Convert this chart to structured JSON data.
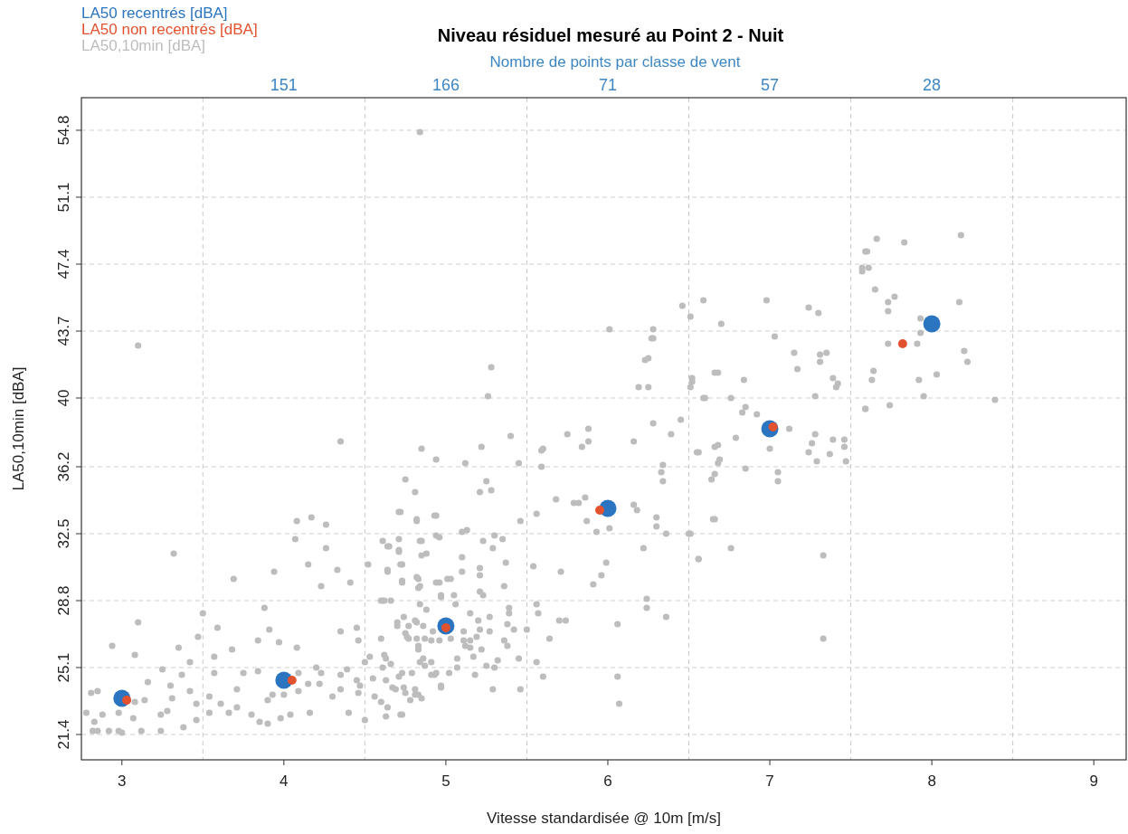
{
  "chart_data": {
    "type": "scatter",
    "title": "Niveau résiduel mesuré au  Point  2  -  Nuit",
    "xlabel": "Vitesse standardisée @ 10m [m/s]",
    "ylabel": "LA50,10min [dBA]",
    "x2label": "Nombre de points par classe de vent",
    "xlim": [
      2.75,
      9.2
    ],
    "xticks": [
      3,
      4,
      5,
      6,
      7,
      8,
      9
    ],
    "annotations": [
      "151",
      "166",
      "71",
      "57",
      "28"
    ],
    "ylim": [
      20.0,
      56.6
    ],
    "yticks": [
      21.4,
      25.1,
      28.8,
      32.5,
      36.2,
      40.0,
      43.7,
      47.4,
      51.1,
      54.8
    ],
    "grid": "y",
    "legend": "top left",
    "marker": "circle",
    "ref_lines": [
      {
        "axis": "x",
        "value": 3.5,
        "color": "#c8c8c8",
        "line_style": "dashed"
      },
      {
        "axis": "x",
        "value": 4.5,
        "color": "#c8c8c8",
        "line_style": "dashed"
      },
      {
        "axis": "x",
        "value": 5.5,
        "color": "#c8c8c8",
        "line_style": "dashed"
      },
      {
        "axis": "x",
        "value": 6.5,
        "color": "#c8c8c8",
        "line_style": "dashed"
      },
      {
        "axis": "x",
        "value": 7.5,
        "color": "#c8c8c8",
        "line_style": "dashed"
      },
      {
        "axis": "x",
        "value": 8.5,
        "color": "#c8c8c8",
        "line_style": "dashed"
      }
    ],
    "series": [
      {
        "name": "LA50,10min [dBA]",
        "color": "#bdbdbd",
        "x": [
          3.32,
          3.1,
          2.94,
          3.08,
          2.81,
          2.85,
          2.78,
          2.83,
          2.88,
          2.82,
          2.85,
          2.92,
          2.98,
          3.0,
          3.12,
          3.07,
          2.98,
          3.08,
          3.14,
          3.16,
          3.24,
          3.24,
          3.25,
          3.3,
          3.31,
          3.28,
          3.38,
          3.37,
          3.35,
          3.42,
          3.42,
          3.46,
          3.47,
          3.46,
          3.5,
          3.1,
          3.59,
          3.57,
          3.57,
          3.54,
          3.54,
          3.61,
          3.66,
          3.68,
          3.69,
          3.71,
          3.71,
          3.75,
          3.8,
          3.85,
          3.84,
          3.84,
          3.88,
          3.9,
          3.91,
          3.9,
          3.93,
          3.94,
          3.97,
          3.98,
          4.0,
          4.04,
          4.07,
          4.08,
          4.08,
          4.09,
          4.09,
          4.15,
          4.17,
          4.15,
          4.16,
          4.2,
          4.22,
          4.23,
          4.23,
          4.26,
          4.26,
          4.3,
          4.33,
          4.35,
          4.35,
          4.35,
          4.39,
          4.4,
          4.41,
          4.45,
          4.46,
          4.45,
          4.46,
          4.47,
          4.5,
          4.5,
          4.35,
          4.52,
          4.53,
          4.55,
          4.56,
          4.6,
          4.61,
          4.64,
          4.64,
          4.6,
          4.62,
          4.62,
          4.64,
          4.63,
          4.7,
          4.71,
          4.71,
          4.71,
          4.72,
          4.73,
          4.72,
          4.73,
          4.73,
          4.74,
          4.75,
          4.76,
          4.82,
          4.82,
          4.83,
          4.84,
          4.85,
          4.83,
          4.82,
          4.81,
          4.83,
          4.84,
          4.86,
          4.93,
          4.94,
          4.94,
          4.97,
          4.93,
          4.97,
          5.03,
          4.84,
          5.28,
          5.26,
          4.85,
          4.94,
          5.12,
          5.22,
          5.4,
          5.45,
          4.75,
          4.81,
          5.25,
          5.21,
          5.28,
          4.72,
          4.82,
          4.94,
          5.46,
          5.1,
          5.13,
          5.3,
          5.35,
          4.96,
          4.85,
          4.71,
          4.65,
          5.23,
          4.88,
          5.29,
          5.1,
          4.64,
          4.73,
          5.21,
          5.37,
          5.1,
          4.83,
          5.01,
          4.73,
          5.21,
          4.84,
          4.96,
          5.36,
          5.21,
          5.23,
          4.97,
          5.05,
          4.61,
          4.66,
          4.84,
          5.06,
          4.88,
          5.39,
          5.39,
          5.15,
          5.56,
          5.57,
          4.74,
          4.81,
          4.7,
          4.77,
          4.86,
          5.2,
          5.27,
          5.38,
          5.42,
          4.92,
          5.11,
          5.21,
          5.27,
          5.5,
          5.7,
          5.74,
          4.77,
          4.82,
          4.87,
          4.91,
          4.96,
          5.03,
          5.11,
          5.15,
          5.19,
          5.64,
          4.83,
          5.12,
          5.15,
          5.22,
          5.36,
          5.38,
          4.63,
          4.66,
          4.61,
          4.87,
          4.91,
          5.07,
          5.17,
          5.32,
          5.07,
          5.25,
          5.3,
          5.45,
          5.56,
          4.71,
          4.79,
          4.91,
          4.94,
          5.02,
          5.18,
          4.63,
          5.6,
          6.06,
          4.67,
          4.69,
          4.75,
          4.81,
          4.78,
          4.85,
          4.97,
          5.29,
          5.46,
          4.6,
          6.07,
          6.06,
          5.59,
          5.6,
          5.59,
          5.75,
          5.88,
          5.84,
          5.88,
          6.19,
          6.25,
          6.25,
          6.28,
          6.28,
          6.16,
          6.39,
          6.45,
          6.34,
          6.33,
          6.34,
          5.56,
          5.68,
          5.79,
          5.82,
          5.86,
          6.16,
          6.18,
          5.87,
          6.01,
          5.93,
          6.3,
          6.3,
          6.36,
          6.22,
          5.99,
          5.96,
          5.91,
          5.71,
          5.54,
          6.24,
          6.24,
          6.36,
          6.5,
          6.56,
          6.55,
          6.52,
          6.59,
          6.66,
          6.66,
          6.64,
          6.68,
          6.65,
          6.59,
          6.46,
          6.51,
          6.7,
          6.98,
          7.24,
          7.3,
          7.03,
          7.15,
          7.31,
          7.35,
          7.17,
          7.31,
          7.39,
          7.42,
          7.41,
          7.28,
          7.59,
          7.57,
          7.59,
          6.68,
          6.84,
          6.6,
          6.76,
          6.85,
          6.83,
          6.92,
          7.12,
          7.28,
          7.26,
          7.39,
          7.46,
          7.46,
          7.24,
          7.37,
          7.47,
          7.29,
          6.79,
          6.68,
          6.56,
          6.69,
          6.85,
          6.66,
          7.0,
          7.05,
          7.05,
          6.66,
          6.76,
          7.33,
          6.56,
          6.51,
          6.51,
          6.52,
          6.01,
          6.28,
          6.27,
          6.23,
          7.33,
          7.66,
          7.83,
          8.18,
          7.6,
          7.61,
          7.57,
          7.65,
          7.77,
          7.73,
          7.73,
          8.17,
          7.93,
          7.93,
          7.91,
          7.73,
          8.2,
          8.22,
          8.03,
          7.92,
          7.64,
          7.63,
          7.95,
          7.74,
          7.59,
          8.39
        ],
        "values": [
          31.4,
          27.6,
          26.3,
          25.8,
          23.7,
          23.8,
          22.6,
          22.1,
          22.5,
          21.6,
          21.6,
          21.6,
          21.6,
          21.5,
          21.6,
          22.3,
          22.6,
          23.2,
          23.3,
          24.3,
          22.5,
          21.6,
          25.0,
          24.1,
          23.4,
          22.7,
          21.8,
          24.7,
          26.2,
          25.4,
          23.8,
          23.1,
          26.8,
          22.2,
          28.1,
          42.9,
          27.3,
          25.7,
          24.8,
          23.5,
          22.6,
          23.1,
          22.6,
          26.1,
          30.0,
          23.9,
          22.9,
          24.8,
          22.5,
          22.1,
          24.9,
          26.6,
          28.4,
          22.0,
          27.2,
          23.3,
          23.6,
          30.4,
          26.5,
          22.3,
          23.6,
          22.5,
          32.2,
          33.2,
          26.2,
          23.8,
          24.8,
          24.2,
          33.4,
          30.8,
          22.6,
          25.1,
          24.2,
          29.6,
          24.8,
          31.7,
          33.0,
          23.5,
          30.5,
          27.1,
          24.7,
          23.9,
          25.0,
          22.6,
          29.8,
          27.3,
          26.6,
          24.4,
          23.7,
          24.1,
          25.4,
          22.2,
          37.6,
          30.8,
          25.7,
          24.5,
          23.5,
          26.7,
          32.1,
          31.8,
          30.4,
          28.8,
          28.8,
          25.8,
          22.9,
          22.4,
          27.6,
          33.7,
          32.2,
          31.5,
          30.8,
          29.8,
          22.5,
          22.5,
          24.8,
          24.0,
          27.0,
          26.8,
          33.3,
          30.1,
          29.5,
          32.1,
          31.3,
          26.3,
          27.6,
          23.6,
          23.6,
          25.4,
          25.6,
          33.5,
          32.4,
          29.8,
          29.0,
          24.7,
          24.1,
          30.0,
          54.7,
          41.7,
          40.1,
          37.2,
          36.6,
          36.4,
          37.3,
          37.9,
          36.4,
          35.5,
          34.8,
          35.4,
          34.8,
          34.9,
          33.7,
          33.2,
          33.5,
          33.2,
          32.6,
          32.7,
          32.4,
          32.2,
          32.3,
          32.1,
          31.6,
          31.8,
          32.1,
          31.4,
          31.7,
          31.2,
          30.5,
          30.8,
          30.6,
          30.9,
          30.4,
          30.0,
          30.0,
          29.9,
          30.2,
          29.6,
          29.8,
          29.6,
          29.3,
          29.1,
          29.1,
          29.1,
          28.8,
          28.8,
          28.6,
          28.6,
          28.3,
          28.4,
          28.1,
          28.1,
          28.6,
          28.1,
          27.9,
          27.7,
          27.4,
          27.4,
          27.4,
          27.7,
          27.9,
          27.5,
          27.2,
          27.1,
          27.1,
          27.2,
          27.1,
          27.2,
          27.7,
          27.7,
          26.7,
          26.7,
          26.7,
          26.6,
          26.6,
          26.7,
          26.6,
          26.6,
          26.8,
          26.7,
          26.1,
          26.3,
          26.2,
          26.1,
          26.6,
          26.3,
          25.6,
          25.3,
          25.1,
          25.2,
          25.4,
          25.6,
          25.7,
          25.5,
          25.1,
          25.2,
          25.1,
          25.6,
          25.4,
          24.6,
          24.8,
          24.7,
          24.8,
          24.8,
          24.7,
          24.4,
          24.6,
          24.6,
          24.0,
          23.9,
          23.7,
          23.9,
          23.3,
          23.4,
          24.0,
          23.9,
          23.9,
          23.2,
          23.1,
          27.5,
          37.1,
          37.2,
          36.2,
          38.0,
          38.3,
          37.3,
          37.6,
          40.6,
          40.6,
          42.2,
          43.3,
          38.6,
          37.6,
          38.0,
          38.8,
          36.3,
          35.9,
          35.4,
          33.6,
          34.4,
          34.2,
          34.2,
          34.5,
          34.1,
          33.8,
          33.2,
          32.8,
          32.6,
          33.4,
          32.9,
          32.5,
          31.7,
          30.9,
          30.2,
          29.7,
          30.4,
          30.7,
          28.9,
          28.4,
          27.9,
          32.5,
          31.1,
          37.0,
          41.1,
          40.0,
          41.4,
          37.3,
          35.5,
          36.4,
          33.3,
          45.4,
          45.1,
          44.5,
          44.1,
          45.4,
          45.0,
          44.7,
          43.4,
          42.5,
          42.4,
          42.5,
          41.6,
          42.0,
          41.1,
          40.8,
          40.6,
          40.1,
          48.1,
          47.2,
          39.4,
          41.4,
          41.0,
          40.0,
          40.0,
          39.5,
          39.2,
          39.1,
          38.3,
          38.0,
          37.5,
          37.7,
          37.7,
          37.3,
          37.0,
          36.9,
          36.5,
          36.5,
          37.8,
          37.4,
          37.0,
          36.6,
          36.1,
          35.8,
          37.2,
          35.9,
          35.4,
          33.3,
          31.7,
          31.3,
          31.1,
          32.5,
          40.6,
          40.9,
          43.8,
          43.8,
          43.3,
          42.1,
          26.7,
          48.8,
          48.6,
          49.0,
          48.1,
          47.2,
          47.0,
          46.0,
          45.6,
          45.3,
          44.8,
          45.3,
          44.4,
          43.6,
          43.0,
          43.0,
          42.6,
          42.0,
          41.3,
          41.0,
          41.5,
          41.0,
          40.1,
          39.6,
          39.4,
          39.9
        ]
      },
      {
        "name": "LA50 recentrés [dBA]",
        "color": "#2b74c0",
        "x": [
          3,
          4,
          5,
          6,
          7,
          8
        ],
        "values": [
          23.4,
          24.4,
          27.4,
          33.9,
          38.3,
          44.1
        ]
      },
      {
        "name": "LA50 non recentrés [dBA]",
        "color": "#e2522f",
        "x": [
          3.03,
          4.05,
          5.0,
          5.95,
          7.02,
          7.82
        ],
        "values": [
          23.3,
          24.4,
          27.3,
          33.8,
          38.4,
          43.0
        ]
      }
    ]
  }
}
